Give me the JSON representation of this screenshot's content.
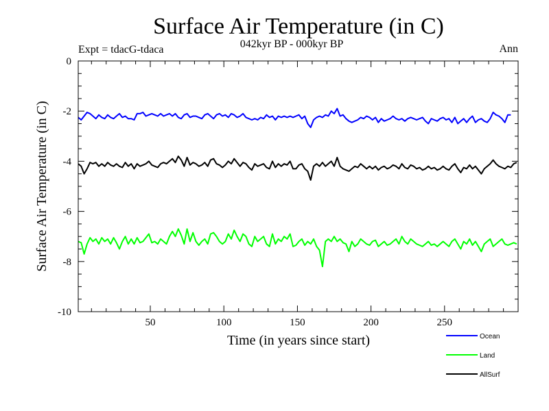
{
  "chart_data": {
    "type": "line",
    "title": "Surface Air Temperature (in C)",
    "subtitle": "042kyr BP - 000kyr BP",
    "expt_label": "Expt = tdacG-tdaca",
    "season_label": "Ann",
    "xlabel": "Time (in years since start)",
    "ylabel": "Surface Air Temperature (in C)",
    "xlim": [
      1,
      300
    ],
    "ylim": [
      -10,
      0
    ],
    "x_ticks": [
      50,
      100,
      150,
      200,
      250
    ],
    "x_tick_labels": [
      "50",
      "100",
      "150",
      "200",
      "250"
    ],
    "y_ticks": [
      0,
      -2,
      -4,
      -6,
      -8,
      -10
    ],
    "y_tick_labels": [
      "0",
      "-2",
      "-4",
      "-6",
      "-8",
      "-10"
    ],
    "grid": false,
    "legend_position": "bottom-right",
    "series": [
      {
        "name": "Ocean",
        "color": "#0000ff",
        "x_start": 1,
        "x_step": 2,
        "values": [
          -2.25,
          -2.35,
          -2.2,
          -2.05,
          -2.1,
          -2.2,
          -2.3,
          -2.15,
          -2.25,
          -2.3,
          -2.15,
          -2.25,
          -2.3,
          -2.2,
          -2.1,
          -2.25,
          -2.2,
          -2.3,
          -2.3,
          -2.35,
          -2.1,
          -2.1,
          -2.05,
          -2.2,
          -2.15,
          -2.1,
          -2.15,
          -2.2,
          -2.1,
          -2.2,
          -2.15,
          -2.1,
          -2.2,
          -2.1,
          -2.25,
          -2.3,
          -2.15,
          -2.1,
          -2.25,
          -2.2,
          -2.2,
          -2.25,
          -2.3,
          -2.15,
          -2.1,
          -2.2,
          -2.3,
          -2.15,
          -2.1,
          -2.2,
          -2.15,
          -2.25,
          -2.1,
          -2.15,
          -2.25,
          -2.2,
          -2.1,
          -2.25,
          -2.3,
          -2.35,
          -2.3,
          -2.35,
          -2.25,
          -2.3,
          -2.15,
          -2.25,
          -2.2,
          -2.35,
          -2.2,
          -2.25,
          -2.2,
          -2.25,
          -2.2,
          -2.25,
          -2.2,
          -2.15,
          -2.3,
          -2.2,
          -2.5,
          -2.65,
          -2.35,
          -2.25,
          -2.2,
          -2.25,
          -2.15,
          -2.2,
          -2.0,
          -2.1,
          -1.9,
          -2.2,
          -2.15,
          -2.3,
          -2.4,
          -2.45,
          -2.4,
          -2.35,
          -2.25,
          -2.3,
          -2.2,
          -2.25,
          -2.35,
          -2.25,
          -2.45,
          -2.3,
          -2.4,
          -2.35,
          -2.3,
          -2.2,
          -2.3,
          -2.35,
          -2.3,
          -2.4,
          -2.3,
          -2.25,
          -2.3,
          -2.35,
          -2.3,
          -2.25,
          -2.4,
          -2.5,
          -2.3,
          -2.35,
          -2.4,
          -2.3,
          -2.25,
          -2.35,
          -2.3,
          -2.45,
          -2.25,
          -2.5,
          -2.4,
          -2.3,
          -2.45,
          -2.3,
          -2.2,
          -2.45,
          -2.35,
          -2.3,
          -2.4,
          -2.45,
          -2.3,
          -2.05,
          -2.15,
          -2.2,
          -2.3,
          -2.45,
          -2.15,
          -2.15
        ]
      },
      {
        "name": "Land",
        "color": "#00ff00",
        "x_start": 1,
        "x_step": 2,
        "values": [
          -7.2,
          -7.25,
          -7.7,
          -7.3,
          -7.05,
          -7.2,
          -7.1,
          -7.3,
          -7.05,
          -7.2,
          -7.1,
          -7.3,
          -7.05,
          -7.25,
          -7.5,
          -7.2,
          -7.0,
          -7.3,
          -7.1,
          -7.3,
          -7.05,
          -7.25,
          -7.2,
          -7.05,
          -6.9,
          -7.25,
          -7.2,
          -7.3,
          -7.1,
          -7.2,
          -7.3,
          -7.0,
          -6.8,
          -7.0,
          -6.7,
          -6.95,
          -7.3,
          -6.7,
          -7.2,
          -6.85,
          -7.2,
          -7.35,
          -7.2,
          -7.1,
          -7.3,
          -6.9,
          -6.85,
          -7.0,
          -7.2,
          -7.3,
          -7.2,
          -6.9,
          -7.1,
          -6.75,
          -7.0,
          -7.2,
          -6.9,
          -7.0,
          -7.3,
          -7.4,
          -7.0,
          -7.2,
          -7.1,
          -7.0,
          -7.3,
          -7.4,
          -6.9,
          -7.3,
          -7.1,
          -7.2,
          -7.0,
          -7.1,
          -6.9,
          -7.4,
          -7.35,
          -7.2,
          -7.1,
          -7.35,
          -7.2,
          -7.3,
          -7.1,
          -7.4,
          -7.55,
          -8.2,
          -7.2,
          -7.1,
          -7.2,
          -7.0,
          -7.2,
          -7.1,
          -7.25,
          -7.3,
          -7.6,
          -7.2,
          -7.4,
          -7.3,
          -7.1,
          -7.2,
          -7.3,
          -7.35,
          -7.2,
          -7.15,
          -7.4,
          -7.3,
          -7.2,
          -7.35,
          -7.3,
          -7.2,
          -7.1,
          -7.3,
          -7.0,
          -7.2,
          -7.3,
          -7.1,
          -7.2,
          -7.3,
          -7.35,
          -7.4,
          -7.3,
          -7.2,
          -7.35,
          -7.3,
          -7.4,
          -7.3,
          -7.2,
          -7.3,
          -7.4,
          -7.2,
          -7.1,
          -7.3,
          -7.5,
          -7.2,
          -7.3,
          -7.1,
          -7.35,
          -7.2,
          -7.4,
          -7.6,
          -7.3,
          -7.2,
          -7.1,
          -7.4,
          -7.3,
          -7.2,
          -7.1,
          -7.3,
          -7.35,
          -7.3,
          -7.25,
          -7.3
        ]
      },
      {
        "name": "AllSurf",
        "color": "#000000",
        "x_start": 1,
        "x_step": 2,
        "values": [
          -4.1,
          -4.2,
          -4.5,
          -4.3,
          -4.05,
          -4.1,
          -4.05,
          -4.2,
          -4.1,
          -4.2,
          -4.05,
          -4.15,
          -4.2,
          -4.1,
          -4.2,
          -4.25,
          -4.05,
          -4.2,
          -4.1,
          -4.3,
          -4.1,
          -4.2,
          -4.15,
          -4.1,
          -4.0,
          -4.15,
          -4.2,
          -4.25,
          -4.1,
          -4.05,
          -4.1,
          -4.0,
          -3.9,
          -4.05,
          -3.8,
          -3.95,
          -4.2,
          -3.85,
          -4.15,
          -4.05,
          -4.1,
          -4.2,
          -4.15,
          -4.05,
          -4.2,
          -3.95,
          -3.9,
          -4.1,
          -4.15,
          -4.25,
          -4.15,
          -4.0,
          -4.1,
          -3.9,
          -4.05,
          -4.2,
          -4.05,
          -4.1,
          -4.25,
          -4.35,
          -4.1,
          -4.2,
          -4.15,
          -4.1,
          -4.25,
          -4.3,
          -4.0,
          -4.25,
          -4.1,
          -4.2,
          -4.1,
          -4.15,
          -4.0,
          -4.3,
          -4.3,
          -4.15,
          -4.1,
          -4.3,
          -4.4,
          -4.75,
          -4.2,
          -4.1,
          -4.2,
          -4.05,
          -4.2,
          -4.1,
          -4.0,
          -4.2,
          -3.85,
          -4.2,
          -4.3,
          -4.35,
          -4.4,
          -4.3,
          -4.2,
          -4.25,
          -4.1,
          -4.2,
          -4.3,
          -4.2,
          -4.3,
          -4.2,
          -4.35,
          -4.25,
          -4.2,
          -4.3,
          -4.25,
          -4.15,
          -4.2,
          -4.3,
          -4.1,
          -4.25,
          -4.3,
          -4.15,
          -4.2,
          -4.3,
          -4.25,
          -4.35,
          -4.3,
          -4.2,
          -4.3,
          -4.25,
          -4.35,
          -4.3,
          -4.2,
          -4.3,
          -4.35,
          -4.2,
          -4.1,
          -4.3,
          -4.45,
          -4.25,
          -4.3,
          -4.15,
          -4.3,
          -4.2,
          -4.35,
          -4.5,
          -4.3,
          -4.2,
          -4.1,
          -3.95,
          -4.1,
          -4.2,
          -4.25,
          -4.3,
          -4.2,
          -4.25,
          -4.1,
          -4.05
        ]
      }
    ]
  }
}
